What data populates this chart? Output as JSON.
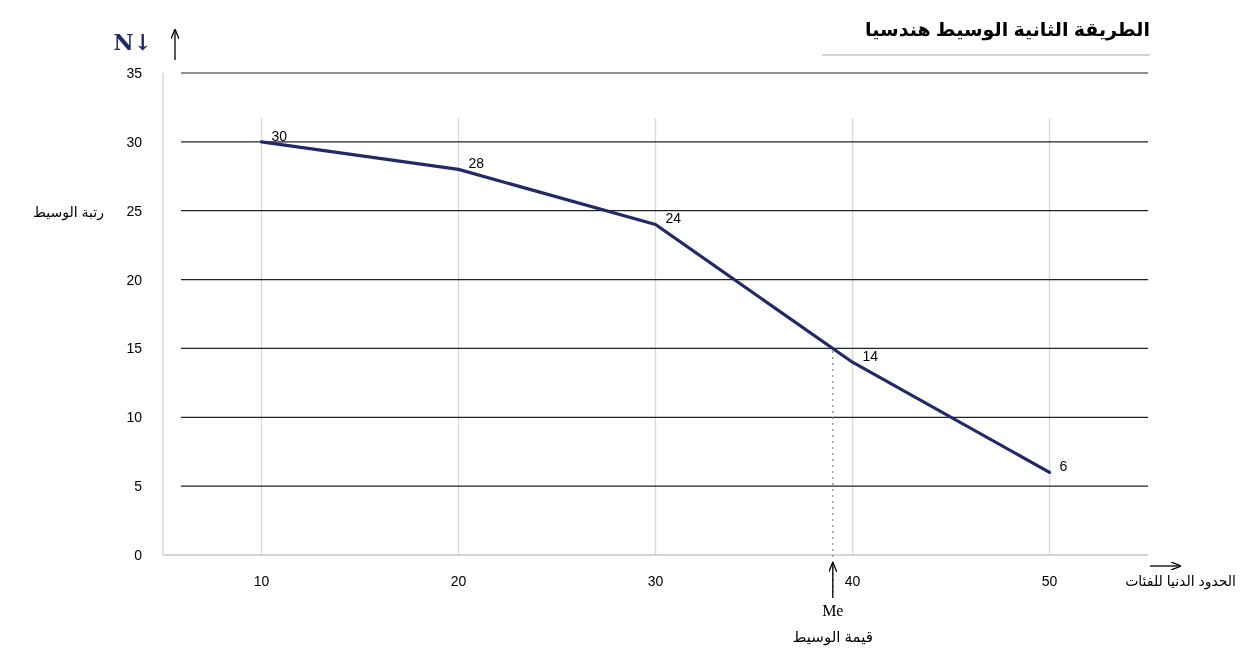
{
  "chart_data": {
    "type": "line",
    "title": "الطريقة الثانية الوسيط هندسيا",
    "xlabel": "الحدود الدنيا للفئات",
    "ylabel": "رتبة الوسيط",
    "x": [
      10,
      20,
      30,
      40,
      50
    ],
    "series": [
      {
        "color": "#1f2a66",
        "values": [
          30,
          28,
          24,
          14,
          6
        ]
      }
    ],
    "xlim": [
      5,
      55
    ],
    "xticks": [
      10,
      20,
      30,
      40,
      50
    ],
    "ylim": [
      0,
      35
    ],
    "yticks": [
      0,
      5,
      10,
      15,
      20,
      25,
      30,
      35
    ],
    "grid": true,
    "marker": "none",
    "line_style": "solid",
    "data_labels": true,
    "ref_lines": [
      {
        "axis": "x",
        "value": 39,
        "label": "Me",
        "line_style": "dotted",
        "color": "#808080"
      }
    ],
    "annotations": [
      "N↓",
      "قيمة الوسيط"
    ]
  }
}
